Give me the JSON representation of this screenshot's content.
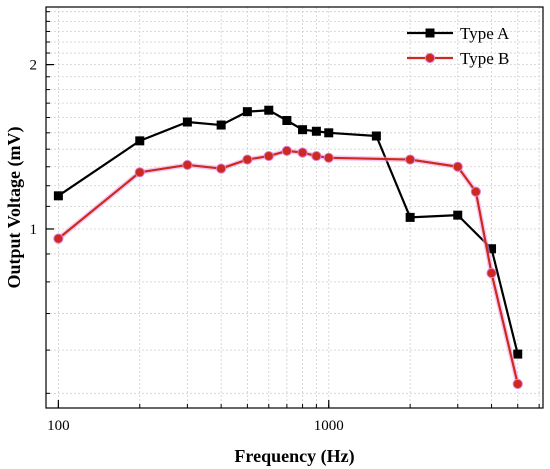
{
  "chart_data": {
    "type": "line",
    "xlabel": "Frequency (Hz)",
    "ylabel": "Output Voltage (mV)",
    "x_scale": "log",
    "y_scale": "log",
    "xlim": [
      90,
      6200
    ],
    "ylim": [
      0.47,
      2.55
    ],
    "x_ticks": [
      {
        "value": 100,
        "label": "100"
      },
      {
        "value": 1000,
        "label": "1000"
      }
    ],
    "y_ticks": [
      {
        "value": 1,
        "label": "1"
      },
      {
        "value": 2,
        "label": "2"
      }
    ],
    "grid": true,
    "legend_position": "top-right",
    "series": [
      {
        "name": "Type A",
        "color": "#000000",
        "marker": "square",
        "x": [
          100,
          200,
          300,
          400,
          500,
          600,
          700,
          800,
          900,
          1000,
          1500,
          2000,
          3000,
          4000,
          5000
        ],
        "y": [
          1.15,
          1.45,
          1.57,
          1.55,
          1.64,
          1.65,
          1.58,
          1.52,
          1.51,
          1.5,
          1.48,
          1.05,
          1.06,
          0.92,
          0.59
        ]
      },
      {
        "name": "Type B",
        "color": "#cc2a1e",
        "marker": "circle",
        "x": [
          100,
          200,
          300,
          400,
          500,
          600,
          700,
          800,
          900,
          1000,
          2000,
          3000,
          3500,
          4000,
          5000
        ],
        "y": [
          0.96,
          1.27,
          1.31,
          1.29,
          1.34,
          1.36,
          1.39,
          1.38,
          1.36,
          1.35,
          1.34,
          1.3,
          1.17,
          0.83,
          0.52
        ]
      }
    ]
  }
}
